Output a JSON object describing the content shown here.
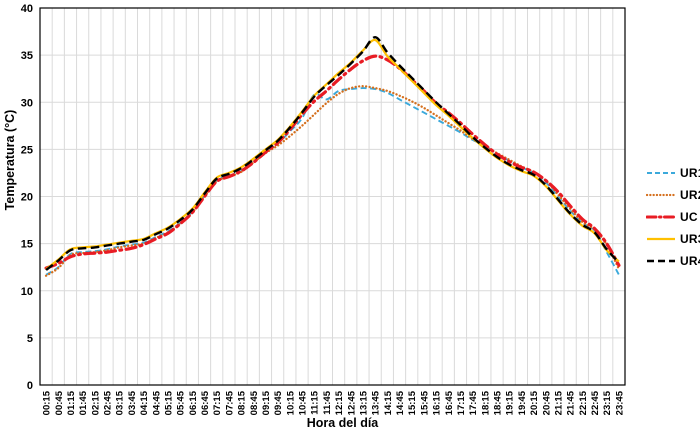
{
  "colors": {
    "gridline": "#DADADA",
    "axis": "#000000",
    "background": "#FFFFFF",
    "label": "#000000"
  },
  "chart_data": {
    "type": "line",
    "xlabel": "Hora del día",
    "ylabel": "Temperatura (°C)",
    "ylim": [
      0,
      40
    ],
    "yticks": [
      0,
      5,
      10,
      15,
      20,
      25,
      30,
      35,
      40
    ],
    "grid": true,
    "legend_position": "right",
    "categories": [
      "00:15",
      "00:45",
      "01:15",
      "01:45",
      "02:15",
      "02:45",
      "03:15",
      "03:45",
      "04:15",
      "04:45",
      "05:15",
      "05:45",
      "06:15",
      "06:45",
      "07:15",
      "07:45",
      "08:15",
      "08:45",
      "09:15",
      "09:45",
      "10:15",
      "10:45",
      "11:15",
      "11:45",
      "12:15",
      "12:45",
      "13:15",
      "13:45",
      "14:15",
      "14:45",
      "15:15",
      "15:45",
      "16:15",
      "16:45",
      "17:15",
      "17:45",
      "18:15",
      "18:45",
      "19:15",
      "19:45",
      "20:15",
      "20:45",
      "21:15",
      "21:45",
      "22:15",
      "22:45",
      "23:15",
      "23:45"
    ],
    "series": [
      {
        "name": "UR1",
        "color": "#3BA9DB",
        "width": 1.9,
        "dash": "6 3.5",
        "legend_dash": "5 3",
        "cap": "butt",
        "values": [
          11.7,
          12.5,
          13.9,
          14.1,
          14.2,
          14.4,
          14.7,
          14.9,
          15.1,
          15.7,
          16.3,
          17.2,
          18.4,
          20.1,
          21.7,
          22.2,
          22.7,
          23.7,
          24.7,
          25.6,
          26.9,
          28.3,
          30.8,
          30.3,
          31.2,
          31.4,
          31.5,
          31.4,
          31.0,
          30.3,
          29.6,
          28.9,
          28.2,
          27.5,
          26.8,
          26.0,
          25.4,
          24.5,
          23.8,
          23.1,
          22.5,
          21.5,
          20.0,
          18.5,
          17.2,
          16.4,
          14.1,
          11.7
        ]
      },
      {
        "name": "UR2",
        "color": "#D5701E",
        "width": 2.3,
        "dash": "0.1 3.4",
        "legend_dash": "0.1 3.2",
        "cap": "round",
        "values": [
          11.6,
          12.4,
          13.8,
          14.0,
          14.1,
          14.3,
          14.6,
          14.8,
          15.0,
          15.6,
          16.2,
          17.1,
          18.3,
          20.0,
          21.6,
          22.1,
          22.6,
          23.6,
          24.6,
          25.4,
          26.4,
          27.5,
          28.7,
          29.9,
          30.9,
          31.5,
          31.7,
          31.5,
          31.2,
          30.7,
          30.1,
          29.4,
          28.6,
          27.8,
          27.0,
          26.1,
          25.3,
          24.6,
          23.9,
          23.2,
          22.6,
          21.7,
          20.2,
          18.7,
          17.3,
          16.5,
          14.9,
          12.3
        ]
      },
      {
        "name": "UC",
        "color": "#E81C24",
        "width": 3.2,
        "dash": "10 4.5 1.8 4.5",
        "legend_dash": "9 3.5 1.5 3.5",
        "cap": "round",
        "values": [
          12.4,
          12.9,
          13.6,
          13.9,
          14.0,
          14.1,
          14.3,
          14.5,
          14.9,
          15.5,
          16.1,
          17.1,
          18.3,
          20.0,
          21.6,
          22.1,
          22.7,
          23.6,
          24.7,
          25.7,
          27.1,
          28.7,
          30.1,
          31.2,
          32.4,
          33.5,
          34.4,
          34.9,
          34.5,
          33.6,
          32.4,
          31.2,
          29.9,
          28.9,
          27.8,
          26.6,
          25.5,
          24.5,
          23.7,
          23.1,
          22.6,
          21.7,
          20.5,
          19.0,
          17.6,
          16.6,
          15.0,
          12.7
        ]
      },
      {
        "name": "UR3",
        "color": "#FFC000",
        "width": 2.2,
        "dash": "",
        "legend_dash": "",
        "cap": "butt",
        "values": [
          12.3,
          13.3,
          14.4,
          14.6,
          14.7,
          14.9,
          15.1,
          15.3,
          15.5,
          16.1,
          16.7,
          17.6,
          18.7,
          20.4,
          22.0,
          22.5,
          23.1,
          24.0,
          25.0,
          26.0,
          27.4,
          29.0,
          30.7,
          31.9,
          33.1,
          34.2,
          35.5,
          36.6,
          34.9,
          33.6,
          32.3,
          31.0,
          29.7,
          28.6,
          27.4,
          26.2,
          25.1,
          24.1,
          23.3,
          22.7,
          22.2,
          21.1,
          19.6,
          18.1,
          16.9,
          16.1,
          14.3,
          13.1
        ]
      },
      {
        "name": "UR4",
        "color": "#000000",
        "width": 2.4,
        "dash": "8.5 4.5",
        "legend_dash": "7 4",
        "cap": "butt",
        "values": [
          12.2,
          13.2,
          14.3,
          14.5,
          14.6,
          14.8,
          15.0,
          15.2,
          15.4,
          16.0,
          16.6,
          17.5,
          18.6,
          20.3,
          21.9,
          22.4,
          23.0,
          23.9,
          24.9,
          25.9,
          27.3,
          28.9,
          30.6,
          31.8,
          32.9,
          34.1,
          35.4,
          36.9,
          35.3,
          33.9,
          32.6,
          31.3,
          30.0,
          28.8,
          27.6,
          26.3,
          25.2,
          24.2,
          23.4,
          22.8,
          22.3,
          21.2,
          19.7,
          18.2,
          17.0,
          16.2,
          14.4,
          13.0
        ]
      }
    ]
  }
}
